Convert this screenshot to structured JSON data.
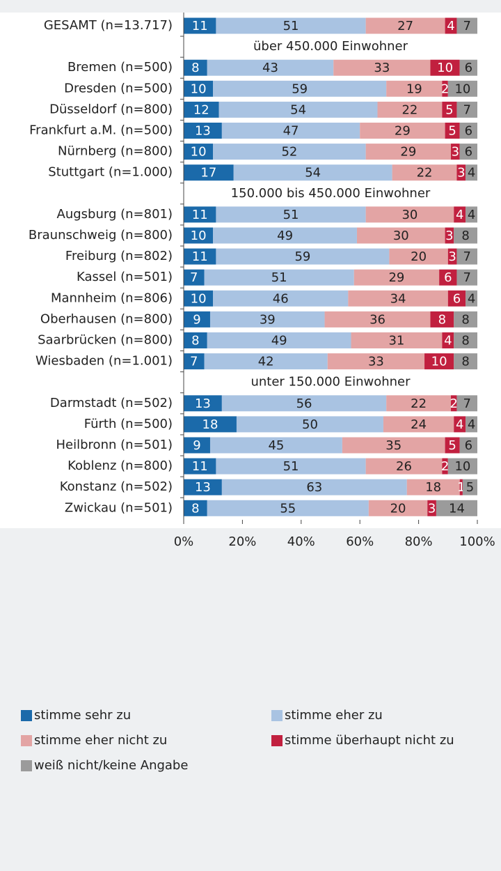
{
  "chart_data": {
    "type": "stacked-bar-horizontal",
    "categories": [
      "GESAMT (n=13.717)",
      "über 450.000 Einwohner",
      "Bremen (n=500)",
      "Dresden (n=500)",
      "Düsseldorf (n=800)",
      "Frankfurt a.M. (n=500)",
      "Nürnberg (n=800)",
      "Stuttgart (n=1.000)",
      "150.000 bis 450.000 Einwohner",
      "Augsburg (n=801)",
      "Braunschweig (n=800)",
      "Freiburg (n=802)",
      "Kassel (n=501)",
      "Mannheim (n=806)",
      "Oberhausen (n=800)",
      "Saarbrücken (n=800)",
      "Wiesbaden (n=1.001)",
      "unter 150.000 Einwohner",
      "Darmstadt (n=502)",
      "Fürth (n=500)",
      "Heilbronn (n=501)",
      "Koblenz (n=800)",
      "Konstanz (n=502)",
      "Zwickau (n=501)"
    ],
    "series": [
      {
        "name": "stimme sehr zu",
        "color": "#1b6aaa",
        "label_color": "#ffffff",
        "values": [
          11,
          null,
          8,
          10,
          12,
          13,
          10,
          17,
          null,
          11,
          10,
          11,
          7,
          10,
          9,
          8,
          7,
          null,
          13,
          18,
          9,
          11,
          13,
          8
        ]
      },
      {
        "name": "stimme eher zu",
        "color": "#a9c3e2",
        "label_color": "#222222",
        "values": [
          51,
          null,
          43,
          59,
          54,
          47,
          52,
          54,
          null,
          51,
          49,
          59,
          51,
          46,
          39,
          49,
          42,
          null,
          56,
          50,
          45,
          51,
          63,
          55
        ]
      },
      {
        "name": "stimme eher nicht zu",
        "color": "#e3a4a4",
        "label_color": "#222222",
        "values": [
          27,
          null,
          33,
          19,
          22,
          29,
          29,
          22,
          null,
          30,
          30,
          20,
          29,
          34,
          36,
          31,
          33,
          null,
          22,
          24,
          35,
          26,
          18,
          20
        ]
      },
      {
        "name": "stimme überhaupt nicht zu",
        "color": "#c1203f",
        "label_color": "#ffffff",
        "values": [
          4,
          null,
          10,
          2,
          5,
          5,
          3,
          3,
          null,
          4,
          3,
          3,
          6,
          6,
          8,
          4,
          10,
          null,
          2,
          4,
          5,
          2,
          1,
          3
        ]
      },
      {
        "name": "weiß nicht/keine Angabe",
        "color": "#9b9b9b",
        "label_color": "#222222",
        "values": [
          7,
          null,
          6,
          10,
          7,
          6,
          6,
          4,
          null,
          4,
          8,
          7,
          7,
          4,
          8,
          8,
          8,
          null,
          7,
          4,
          6,
          10,
          5,
          14
        ]
      }
    ],
    "xlim": [
      0,
      100
    ],
    "xticks": [
      {
        "value": 0,
        "label": "0%"
      },
      {
        "value": 20,
        "label": "20%"
      },
      {
        "value": 40,
        "label": "40%"
      },
      {
        "value": 60,
        "label": "60%"
      },
      {
        "value": 80,
        "label": "80%"
      },
      {
        "value": 100,
        "label": "100%"
      }
    ]
  }
}
